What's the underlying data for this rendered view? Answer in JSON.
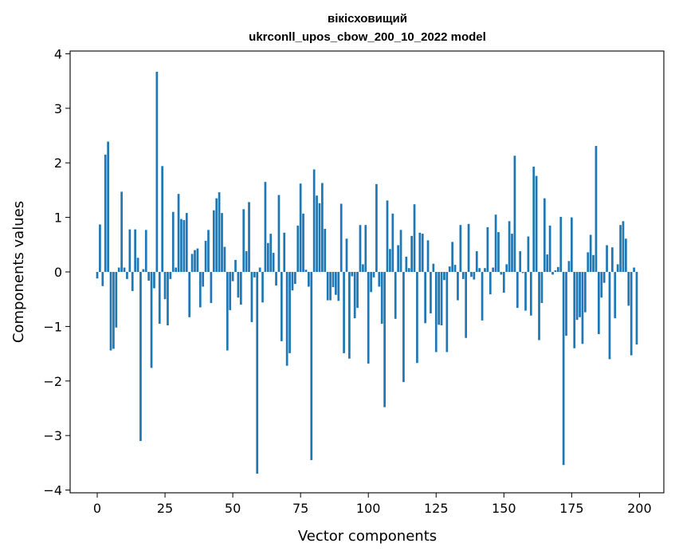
{
  "chart_data": {
    "type": "bar",
    "title_line1": "вікісховищий",
    "title_line2": "ukrconll_upos_cbow_200_10_2022 model",
    "xlabel": "Vector components",
    "ylabel": "Components values",
    "xlim": [
      -10,
      209
    ],
    "ylim": [
      -4.05,
      4.05
    ],
    "xticks": [
      0,
      25,
      50,
      75,
      100,
      125,
      150,
      175,
      200
    ],
    "yticks": [
      -4,
      -3,
      -2,
      -1,
      0,
      1,
      2,
      3,
      4
    ],
    "ytick_labels": [
      "−4",
      "−3",
      "−2",
      "−1",
      "0",
      "1",
      "2",
      "3",
      "4"
    ],
    "bar_color": "#1f77b4",
    "grid": false,
    "legend": "none",
    "x": [
      0,
      1,
      2,
      3,
      4,
      5,
      6,
      7,
      8,
      9,
      10,
      11,
      12,
      13,
      14,
      15,
      16,
      17,
      18,
      19,
      20,
      21,
      22,
      23,
      24,
      25,
      26,
      27,
      28,
      29,
      30,
      31,
      32,
      33,
      34,
      35,
      36,
      37,
      38,
      39,
      40,
      41,
      42,
      43,
      44,
      45,
      46,
      47,
      48,
      49,
      50,
      51,
      52,
      53,
      54,
      55,
      56,
      57,
      58,
      59,
      60,
      61,
      62,
      63,
      64,
      65,
      66,
      67,
      68,
      69,
      70,
      71,
      72,
      73,
      74,
      75,
      76,
      77,
      78,
      79,
      80,
      81,
      82,
      83,
      84,
      85,
      86,
      87,
      88,
      89,
      90,
      91,
      92,
      93,
      94,
      95,
      96,
      97,
      98,
      99,
      100,
      101,
      102,
      103,
      104,
      105,
      106,
      107,
      108,
      109,
      110,
      111,
      112,
      113,
      114,
      115,
      116,
      117,
      118,
      119,
      120,
      121,
      122,
      123,
      124,
      125,
      126,
      127,
      128,
      129,
      130,
      131,
      132,
      133,
      134,
      135,
      136,
      137,
      138,
      139,
      140,
      141,
      142,
      143,
      144,
      145,
      146,
      147,
      148,
      149,
      150,
      151,
      152,
      153,
      154,
      155,
      156,
      157,
      158,
      159,
      160,
      161,
      162,
      163,
      164,
      165,
      166,
      167,
      168,
      169,
      170,
      171,
      172,
      173,
      174,
      175,
      176,
      177,
      178,
      179,
      180,
      181,
      182,
      183,
      184,
      185,
      186,
      187,
      188,
      189,
      190,
      191,
      192,
      193,
      194,
      195,
      196,
      197,
      198,
      199
    ],
    "values": [
      -0.12,
      0.87,
      -0.26,
      2.15,
      2.39,
      -1.44,
      -1.41,
      -1.02,
      0.08,
      1.47,
      0.08,
      -0.13,
      0.78,
      -0.35,
      0.78,
      0.26,
      -3.1,
      0.05,
      0.77,
      -0.16,
      -1.76,
      -0.3,
      3.67,
      -0.95,
      1.94,
      -0.5,
      -0.98,
      -0.13,
      1.1,
      0.08,
      1.43,
      0.97,
      0.95,
      1.08,
      -0.83,
      0.33,
      0.4,
      0.43,
      -0.65,
      -0.27,
      0.57,
      0.77,
      -0.57,
      1.13,
      1.35,
      1.46,
      1.08,
      0.46,
      -1.44,
      -0.7,
      -0.17,
      0.22,
      -0.47,
      -0.6,
      1.15,
      0.38,
      1.28,
      -0.92,
      -0.1,
      -3.7,
      0.08,
      -0.56,
      1.65,
      0.53,
      0.7,
      0.35,
      -0.25,
      1.41,
      -1.27,
      0.72,
      -1.72,
      -1.49,
      -0.34,
      -0.22,
      0.85,
      1.62,
      1.07,
      0.04,
      -0.27,
      -3.45,
      1.88,
      1.4,
      1.26,
      1.63,
      0.79,
      -0.52,
      -0.52,
      -0.28,
      -0.42,
      -0.53,
      1.25,
      -1.49,
      0.61,
      -1.59,
      -0.08,
      -0.85,
      -0.66,
      0.86,
      0.14,
      0.86,
      -1.68,
      -0.37,
      -0.1,
      1.61,
      -0.27,
      -0.95,
      -2.48,
      1.31,
      0.42,
      1.07,
      -0.86,
      0.49,
      0.77,
      -2.02,
      0.28,
      0.07,
      0.66,
      1.24,
      -1.67,
      0.72,
      0.7,
      -0.94,
      0.58,
      -0.76,
      0.15,
      -1.47,
      -0.97,
      -0.98,
      -0.15,
      -1.47,
      0.1,
      0.55,
      0.13,
      -0.52,
      0.86,
      -0.13,
      -1.21,
      0.88,
      -0.09,
      -0.14,
      0.38,
      0.07,
      -0.89,
      0.07,
      0.82,
      -0.41,
      0.08,
      1.05,
      0.73,
      -0.05,
      -0.38,
      0.14,
      0.93,
      0.7,
      2.13,
      -0.66,
      0.38,
      -0.02,
      -0.71,
      0.65,
      -0.8,
      1.93,
      1.76,
      -1.25,
      -0.57,
      1.35,
      0.32,
      0.85,
      -0.05,
      0.03,
      0.09,
      1.01,
      -3.54,
      -1.17,
      0.2,
      1.0,
      -1.4,
      -0.88,
      -0.83,
      -1.32,
      -0.74,
      0.36,
      0.68,
      0.31,
      2.31,
      -1.14,
      -0.47,
      -0.2,
      0.49,
      -1.6,
      0.45,
      -0.85,
      0.14,
      0.86,
      0.93,
      0.61,
      -0.62,
      -1.53,
      0.08,
      -1.33
    ]
  }
}
